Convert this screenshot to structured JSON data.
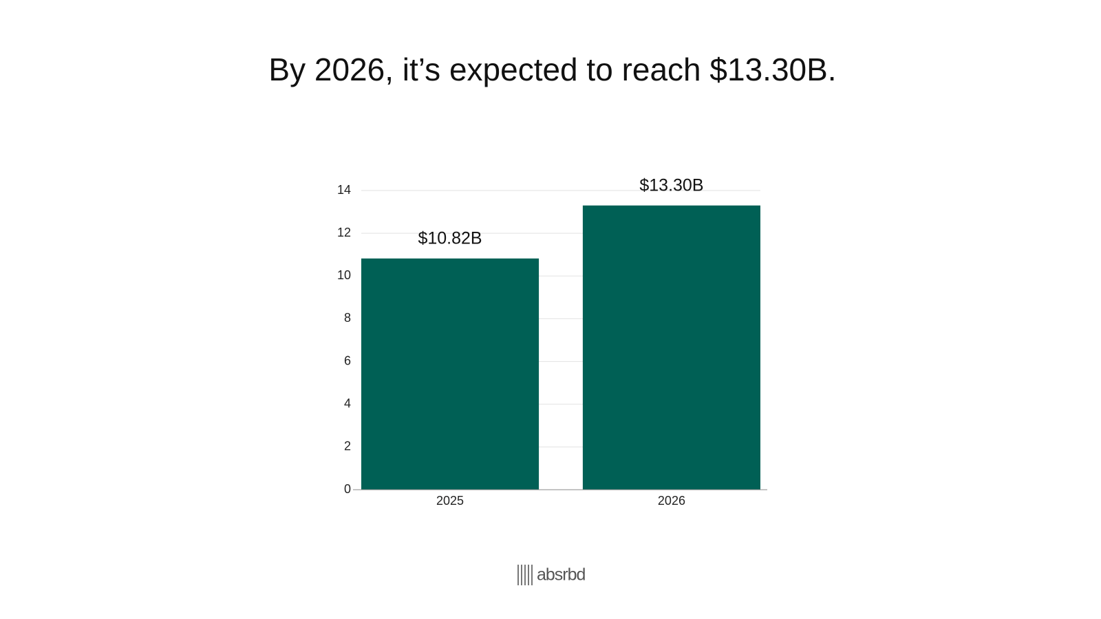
{
  "chart_data": {
    "type": "bar",
    "title": "By 2026, it’s expected to reach $13.30B.",
    "categories": [
      "2025",
      "2026"
    ],
    "values": [
      10.82,
      13.3
    ],
    "value_labels": [
      "$10.82B",
      "$13.30B"
    ],
    "color": "#006055",
    "ylim": [
      0,
      14
    ],
    "yticks": [
      0,
      2,
      4,
      6,
      8,
      10,
      12,
      14
    ],
    "grid": true
  },
  "logo": "absrbd"
}
